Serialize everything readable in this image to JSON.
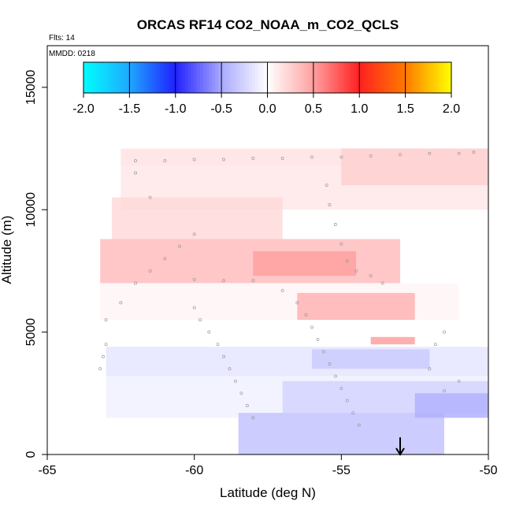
{
  "chart_data": {
    "type": "heatmap",
    "title": "ORCAS RF14 CO2_NOAA_m_CO2_QCLS",
    "corner_labels": [
      "Flts: 14",
      "MMDD: 0218"
    ],
    "xlabel": "Latitude (deg N)",
    "ylabel": "Altitude (m)",
    "xlim": [
      -65,
      -50
    ],
    "ylim": [
      0,
      16700
    ],
    "x_ticks": [
      -65,
      -60,
      -55,
      -50
    ],
    "x_tick_labels": [
      "-65",
      "-60",
      "-55",
      "-50"
    ],
    "y_ticks": [
      0,
      5000,
      10000,
      15000
    ],
    "y_tick_labels": [
      "0",
      "5000",
      "10000",
      "15000"
    ],
    "colorbar": {
      "range": [
        -2.0,
        2.0
      ],
      "ticks": [
        -2.0,
        -1.5,
        -1.0,
        -0.5,
        0.0,
        0.5,
        1.0,
        1.5,
        2.0
      ],
      "tick_labels": [
        "-2.0",
        "-1.5",
        "-1.0",
        "-0.5",
        "0.0",
        "0.5",
        "1.0",
        "1.5",
        "2.0"
      ],
      "stops": [
        {
          "v": -2.0,
          "color": "#00ffff"
        },
        {
          "v": -1.5,
          "color": "#1fa8ff"
        },
        {
          "v": -1.0,
          "color": "#2020ff"
        },
        {
          "v": -0.5,
          "color": "#a9a9ff"
        },
        {
          "v": 0.0,
          "color": "#ffffff"
        },
        {
          "v": 0.5,
          "color": "#ffa0a0"
        },
        {
          "v": 1.0,
          "color": "#ff2020"
        },
        {
          "v": 1.5,
          "color": "#ff7a00"
        },
        {
          "v": 2.0,
          "color": "#ffff00"
        }
      ]
    },
    "field_regions": [
      {
        "name": "upper-edge-band",
        "lat": [
          -62.5,
          -50.0
        ],
        "alt": [
          11800,
          12500
        ],
        "value": 0.15
      },
      {
        "name": "upper-band",
        "lat": [
          -62.5,
          -50.0
        ],
        "alt": [
          10000,
          11800
        ],
        "value": 0.12
      },
      {
        "name": "upper-band-north",
        "lat": [
          -55.0,
          -50.0
        ],
        "alt": [
          11000,
          12500
        ],
        "value": 0.25
      },
      {
        "name": "upper-mid-band",
        "lat": [
          -62.8,
          -57.0
        ],
        "alt": [
          8800,
          10500
        ],
        "value": 0.2
      },
      {
        "name": "mid-pos-band",
        "lat": [
          -63.2,
          -53.0
        ],
        "alt": [
          7000,
          8800
        ],
        "value": 0.35
      },
      {
        "name": "mid-pos-core",
        "lat": [
          -58.0,
          -54.5
        ],
        "alt": [
          7300,
          8300
        ],
        "value": 0.5
      },
      {
        "name": "mid-white",
        "lat": [
          -63.2,
          -51.0
        ],
        "alt": [
          5500,
          7000
        ],
        "value": 0.05
      },
      {
        "name": "right-pos-patch",
        "lat": [
          -56.5,
          -52.5
        ],
        "alt": [
          5500,
          6600
        ],
        "value": 0.4
      },
      {
        "name": "small-pos-patch",
        "lat": [
          -54.0,
          -52.5
        ],
        "alt": [
          4500,
          4800
        ],
        "value": 0.5
      },
      {
        "name": "neg-band",
        "lat": [
          -63.0,
          -50.0
        ],
        "alt": [
          3200,
          4400
        ],
        "value": -0.15
      },
      {
        "name": "neg-patch",
        "lat": [
          -56.0,
          -52.0
        ],
        "alt": [
          3500,
          4300
        ],
        "value": -0.3
      },
      {
        "name": "low-band",
        "lat": [
          -63.0,
          -50.0
        ],
        "alt": [
          1500,
          3200
        ],
        "value": -0.08
      },
      {
        "name": "low-neg-patch",
        "lat": [
          -57.0,
          -50.0
        ],
        "alt": [
          1700,
          3000
        ],
        "value": -0.25
      },
      {
        "name": "bottom-neg-band",
        "lat": [
          -58.5,
          -51.5
        ],
        "alt": [
          0,
          1700
        ],
        "value": -0.35
      },
      {
        "name": "bottom-right-neg",
        "lat": [
          -52.5,
          -50.0
        ],
        "alt": [
          1500,
          2500
        ],
        "value": -0.45
      }
    ],
    "flight_track": [
      [
        -62.0,
        12000
      ],
      [
        -61.0,
        12000
      ],
      [
        -60.0,
        12050
      ],
      [
        -59.0,
        12050
      ],
      [
        -58.0,
        12100
      ],
      [
        -57.0,
        12100
      ],
      [
        -56.0,
        12150
      ],
      [
        -55.0,
        12150
      ],
      [
        -54.0,
        12200
      ],
      [
        -53.0,
        12250
      ],
      [
        -52.0,
        12300
      ],
      [
        -51.0,
        12300
      ],
      [
        -50.5,
        12350
      ],
      [
        -55.5,
        11000
      ],
      [
        -55.4,
        10200
      ],
      [
        -55.2,
        9400
      ],
      [
        -55.0,
        8600
      ],
      [
        -54.8,
        7900
      ],
      [
        -54.5,
        7500
      ],
      [
        -54.0,
        7300
      ],
      [
        -53.6,
        7000
      ],
      [
        -58.0,
        7100
      ],
      [
        -59.0,
        7100
      ],
      [
        -60.0,
        7150
      ],
      [
        -57.0,
        6700
      ],
      [
        -56.5,
        6200
      ],
      [
        -56.2,
        5700
      ],
      [
        -56.0,
        5200
      ],
      [
        -55.8,
        4700
      ],
      [
        -55.6,
        4200
      ],
      [
        -55.4,
        3700
      ],
      [
        -55.2,
        3200
      ],
      [
        -55.0,
        2700
      ],
      [
        -54.8,
        2200
      ],
      [
        -54.6,
        1700
      ],
      [
        -54.4,
        1200
      ],
      [
        -58.0,
        1500
      ],
      [
        -58.2,
        2000
      ],
      [
        -58.4,
        2500
      ],
      [
        -58.6,
        3000
      ],
      [
        -58.8,
        3500
      ],
      [
        -59.0,
        4000
      ],
      [
        -59.2,
        4500
      ],
      [
        -59.5,
        5000
      ],
      [
        -59.8,
        5500
      ],
      [
        -60.0,
        6000
      ],
      [
        -63.0,
        4500
      ],
      [
        -63.1,
        4000
      ],
      [
        -63.2,
        3500
      ],
      [
        -63.0,
        5500
      ],
      [
        -62.5,
        6200
      ],
      [
        -62.0,
        7000
      ],
      [
        -61.5,
        7500
      ],
      [
        -61.0,
        8000
      ],
      [
        -60.5,
        8500
      ],
      [
        -60.0,
        9000
      ],
      [
        -61.5,
        10500
      ],
      [
        -62.0,
        11500
      ],
      [
        -52.0,
        3500
      ],
      [
        -51.8,
        4500
      ],
      [
        -51.5,
        5000
      ],
      [
        -51.0,
        3000
      ],
      [
        -51.5,
        2600
      ]
    ],
    "arrow_marker": {
      "lat": -53.0,
      "alt_top": 700,
      "alt_bottom": 0
    }
  }
}
